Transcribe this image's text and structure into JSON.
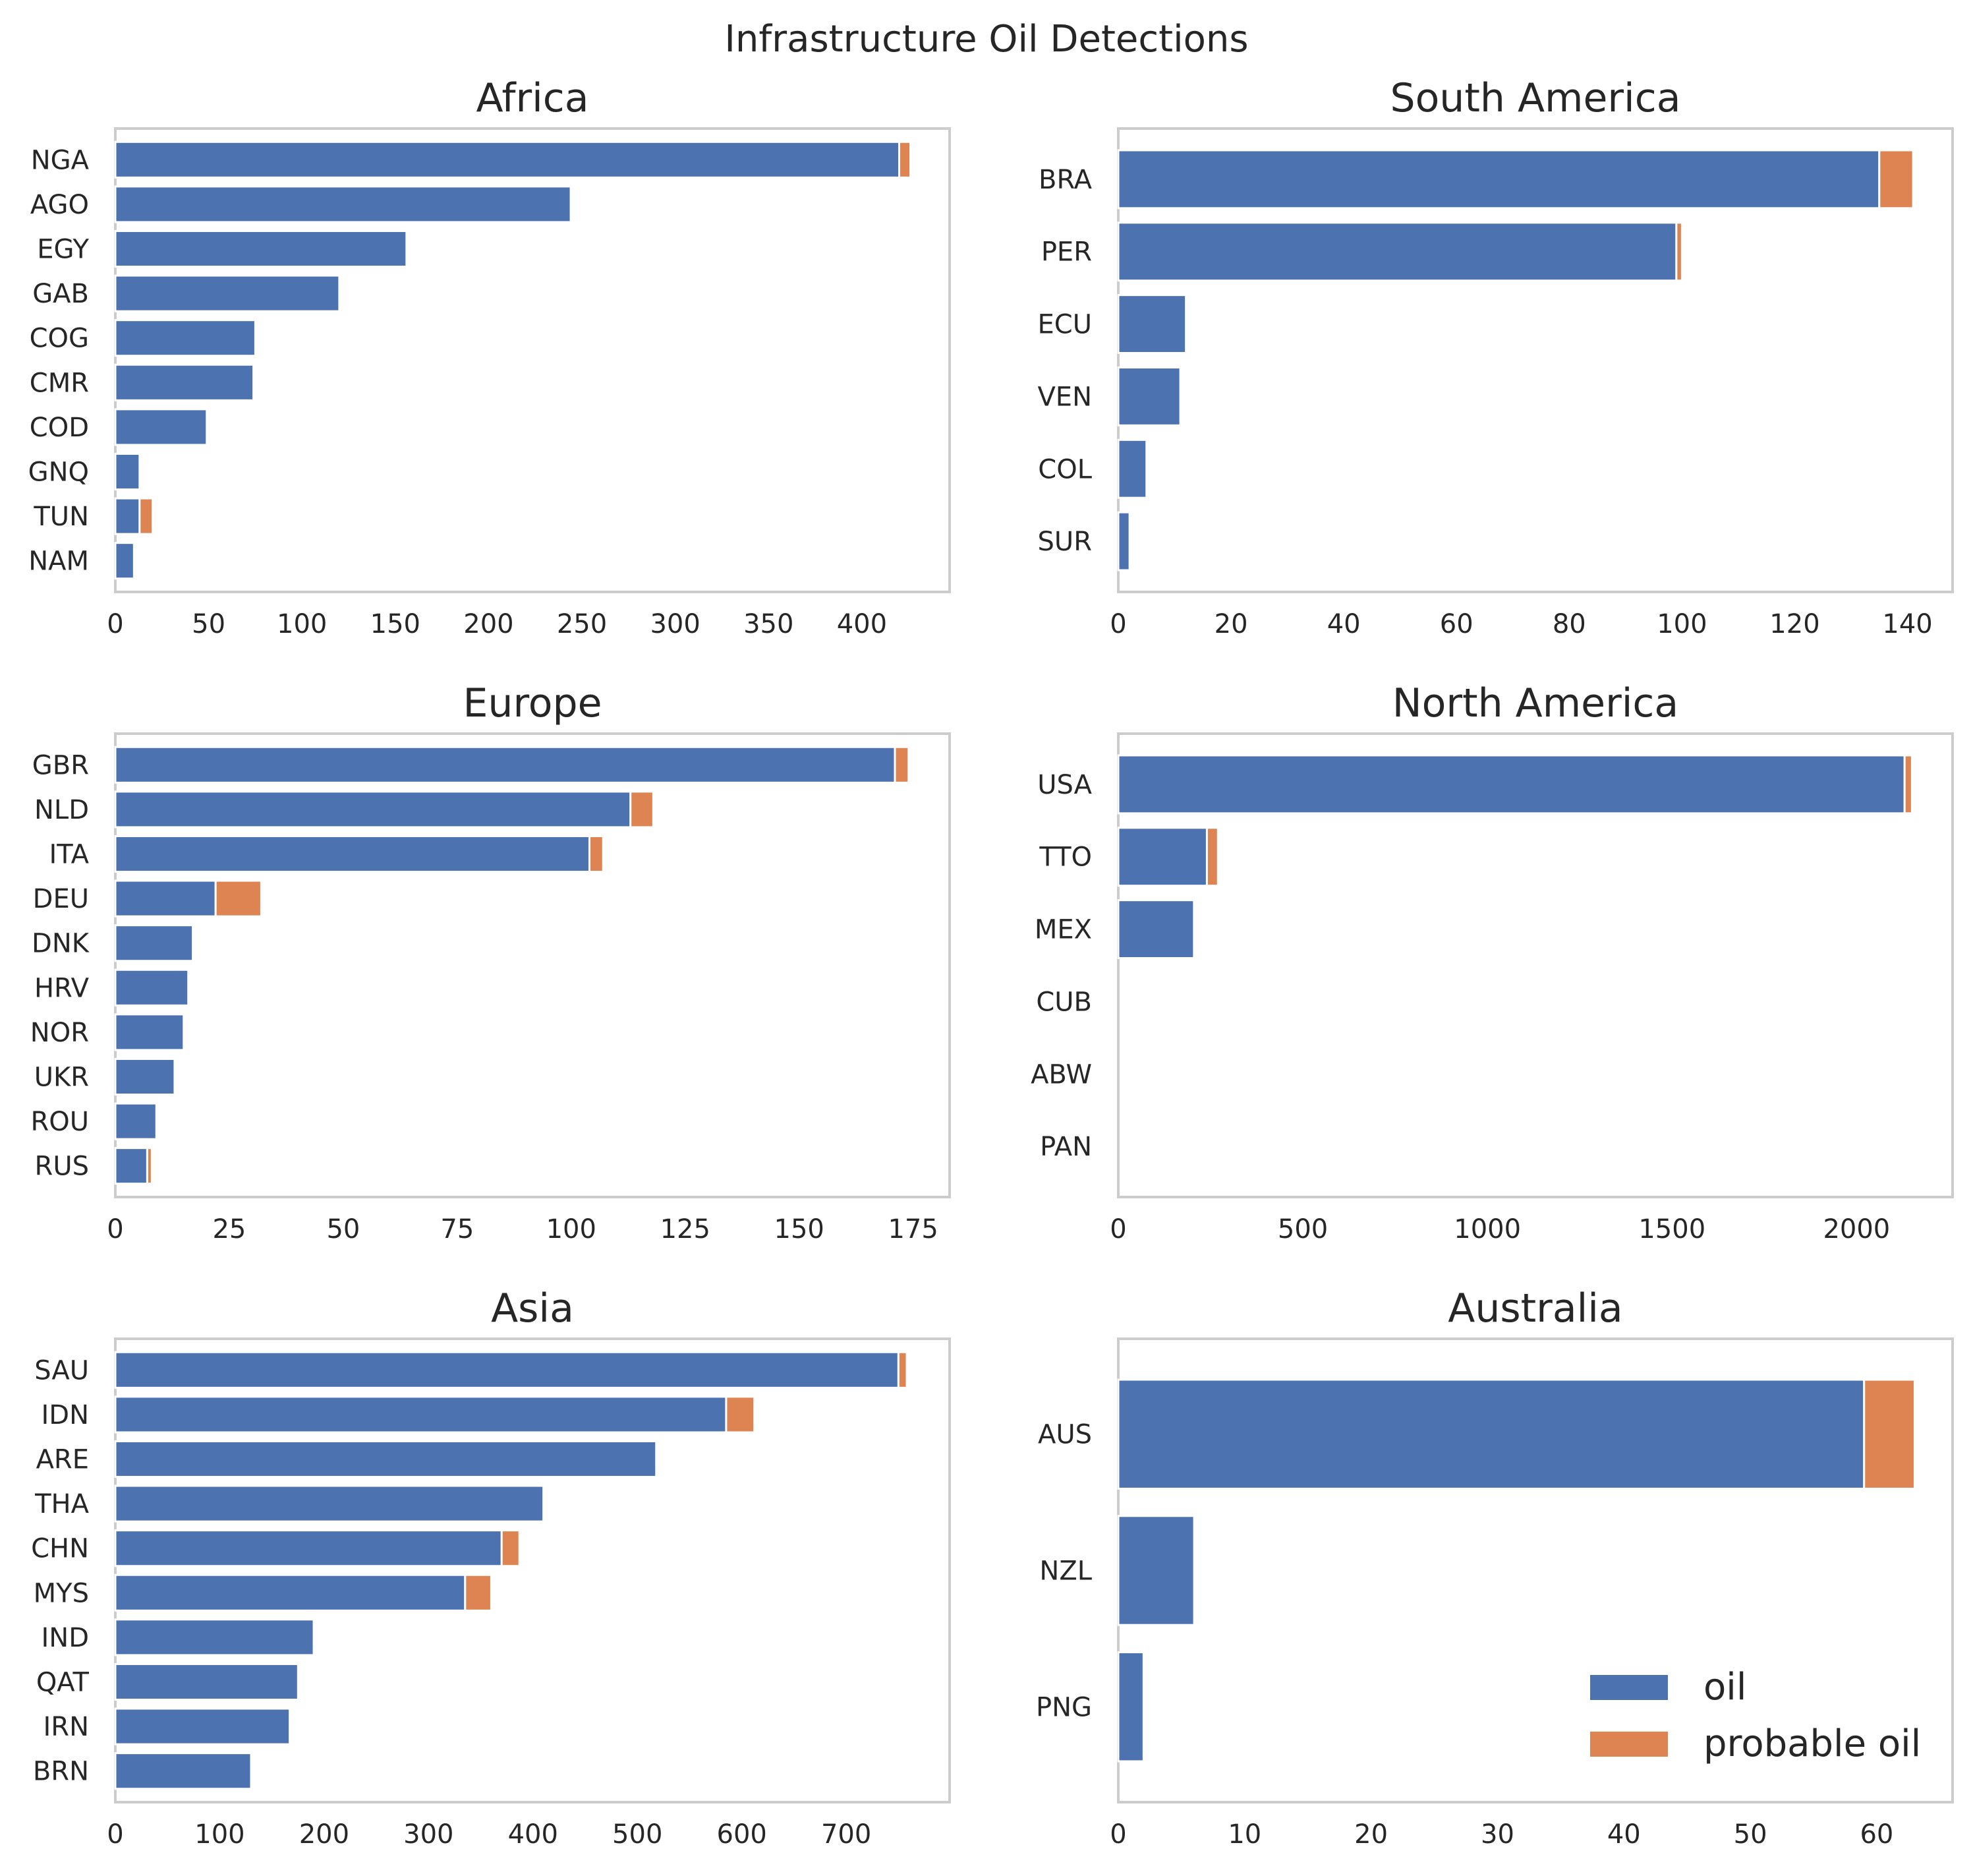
{
  "title": "Infrastructure Oil Detections",
  "colors": {
    "oil": "#4c72b0",
    "probable": "#dd8452",
    "frame": "#cccccc",
    "text": "#262626"
  },
  "legend": {
    "oil_label": "oil",
    "probable_label": "probable oil",
    "position": "lower-right of Australia panel"
  },
  "chart_data": [
    {
      "type": "bar",
      "orientation": "horizontal",
      "stacked": true,
      "title": "Africa",
      "categories": [
        "NGA",
        "AGO",
        "EGY",
        "GAB",
        "COG",
        "CMR",
        "COD",
        "GNQ",
        "TUN",
        "NAM"
      ],
      "series": [
        {
          "name": "oil",
          "values": [
            420,
            244,
            156,
            120,
            75,
            74,
            49,
            13,
            13,
            10
          ]
        },
        {
          "name": "probable oil",
          "values": [
            6,
            0,
            0,
            0,
            0,
            0,
            0,
            0,
            7,
            0
          ]
        }
      ],
      "xlim": [
        0,
        447
      ],
      "xticks": [
        0,
        50,
        100,
        150,
        200,
        250,
        300,
        350,
        400
      ]
    },
    {
      "type": "bar",
      "orientation": "horizontal",
      "stacked": true,
      "title": "South America",
      "categories": [
        "BRA",
        "PER",
        "ECU",
        "VEN",
        "COL",
        "SUR"
      ],
      "series": [
        {
          "name": "oil",
          "values": [
            135,
            99,
            12,
            11,
            5,
            2
          ]
        },
        {
          "name": "probable oil",
          "values": [
            6,
            1,
            0,
            0,
            0,
            0
          ]
        }
      ],
      "xlim": [
        0,
        148
      ],
      "xticks": [
        0,
        20,
        40,
        60,
        80,
        100,
        120,
        140
      ]
    },
    {
      "type": "bar",
      "orientation": "horizontal",
      "stacked": true,
      "title": "Europe",
      "categories": [
        "GBR",
        "NLD",
        "ITA",
        "DEU",
        "DNK",
        "HRV",
        "NOR",
        "UKR",
        "ROU",
        "RUS"
      ],
      "series": [
        {
          "name": "oil",
          "values": [
            171,
            113,
            104,
            22,
            17,
            16,
            15,
            13,
            9,
            7
          ]
        },
        {
          "name": "probable oil",
          "values": [
            3,
            5,
            3,
            10,
            0,
            0,
            0,
            0,
            0,
            1
          ]
        }
      ],
      "xlim": [
        0,
        183
      ],
      "xticks": [
        0,
        25,
        50,
        75,
        100,
        125,
        150,
        175
      ]
    },
    {
      "type": "bar",
      "orientation": "horizontal",
      "stacked": true,
      "title": "North America",
      "categories": [
        "USA",
        "TTO",
        "MEX",
        "CUB",
        "ABW",
        "PAN"
      ],
      "series": [
        {
          "name": "oil",
          "values": [
            2130,
            240,
            205,
            0,
            0,
            0
          ]
        },
        {
          "name": "probable oil",
          "values": [
            20,
            30,
            0,
            0,
            0,
            0
          ]
        }
      ],
      "xlim": [
        0,
        2260
      ],
      "xticks": [
        0,
        500,
        1000,
        1500,
        2000
      ]
    },
    {
      "type": "bar",
      "orientation": "horizontal",
      "stacked": true,
      "title": "Asia",
      "categories": [
        "SAU",
        "IDN",
        "ARE",
        "THA",
        "CHN",
        "MYS",
        "IND",
        "QAT",
        "IRN",
        "BRN"
      ],
      "series": [
        {
          "name": "oil",
          "values": [
            750,
            585,
            518,
            410,
            370,
            335,
            190,
            175,
            167,
            130
          ]
        },
        {
          "name": "probable oil",
          "values": [
            8,
            27,
            0,
            0,
            17,
            25,
            0,
            0,
            0,
            0
          ]
        }
      ],
      "xlim": [
        0,
        799
      ],
      "xticks": [
        0,
        100,
        200,
        300,
        400,
        500,
        600,
        700
      ]
    },
    {
      "type": "bar",
      "orientation": "horizontal",
      "stacked": true,
      "title": "Australia",
      "categories": [
        "AUS",
        "NZL",
        "PNG"
      ],
      "series": [
        {
          "name": "oil",
          "values": [
            59,
            6,
            2
          ]
        },
        {
          "name": "probable oil",
          "values": [
            4,
            0,
            0
          ]
        }
      ],
      "xlim": [
        0,
        66
      ],
      "xticks": [
        0,
        10,
        20,
        30,
        40,
        50,
        60
      ]
    }
  ]
}
